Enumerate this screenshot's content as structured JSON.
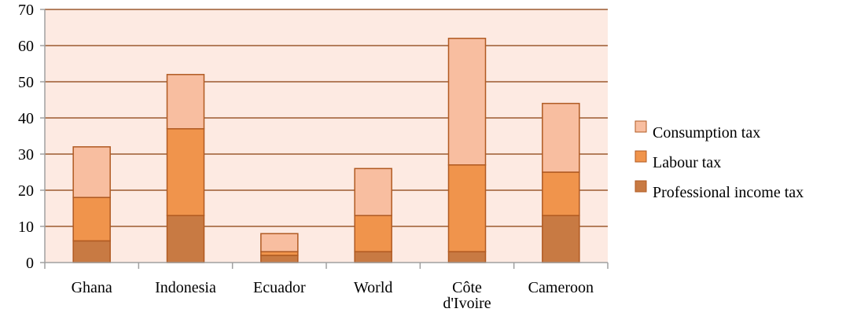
{
  "chart_data": {
    "type": "bar",
    "stacked": true,
    "categories": [
      "Ghana",
      "Indonesia",
      "Ecuador",
      "World",
      "Côte d'Ivoire",
      "Cameroon"
    ],
    "category_lines": [
      [
        "Ghana"
      ],
      [
        "Indonesia"
      ],
      [
        "Ecuador"
      ],
      [
        "World"
      ],
      [
        "Côte",
        "d'Ivoire"
      ],
      [
        "Cameroon"
      ]
    ],
    "series": [
      {
        "name": "Professional income tax",
        "values": [
          6,
          13,
          2,
          3,
          3,
          13
        ],
        "color": "#c87a43"
      },
      {
        "name": "Labour tax",
        "values": [
          12,
          24,
          1,
          10,
          24,
          12
        ],
        "color": "#f0944c"
      },
      {
        "name": "Consumption tax",
        "values": [
          14,
          15,
          5,
          13,
          35,
          19
        ],
        "color": "#f8bea0"
      }
    ],
    "legend_order": [
      "Consumption tax",
      "Labour tax",
      "Professional income tax"
    ],
    "ylim": [
      0,
      70
    ],
    "yticks": [
      0,
      10,
      20,
      30,
      40,
      50,
      60,
      70
    ],
    "grid": true,
    "legend_position": "right",
    "plot_background": "#fdeae2",
    "border_color": "#b05a22",
    "gridline_color": "#9c5a30"
  }
}
